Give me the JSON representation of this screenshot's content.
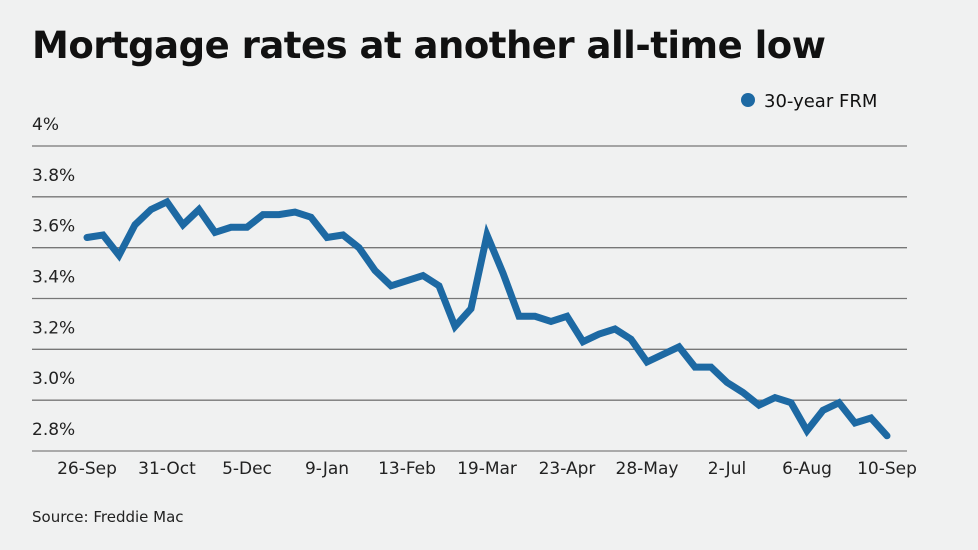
{
  "chart_data": {
    "type": "line",
    "title": "Mortgage rates at another all-time low",
    "source": "Source: Freddie Mac",
    "xlabel": "",
    "ylabel": "",
    "ylim": [
      2.8,
      4.0
    ],
    "yticks": [
      2.8,
      3.0,
      3.2,
      3.4,
      3.6,
      3.8,
      4.0
    ],
    "ytick_labels": [
      "2.8%",
      "3.0%",
      "3.2%",
      "3.4%",
      "3.6%",
      "3.8%",
      "4%"
    ],
    "xtick_labels": [
      "26-Sep",
      "31-Oct",
      "5-Dec",
      "9-Jan",
      "13-Feb",
      "19-Mar",
      "23-Apr",
      "28-May",
      "2-Jul",
      "6-Aug",
      "10-Sep"
    ],
    "grid": true,
    "legend_position": "top-right",
    "series": [
      {
        "name": "30-year FRM",
        "color": "#1d69a3",
        "values": [
          3.64,
          3.65,
          3.57,
          3.69,
          3.75,
          3.78,
          3.69,
          3.75,
          3.66,
          3.68,
          3.68,
          3.73,
          3.73,
          3.74,
          3.72,
          3.64,
          3.65,
          3.6,
          3.51,
          3.45,
          3.47,
          3.49,
          3.45,
          3.29,
          3.36,
          3.65,
          3.5,
          3.33,
          3.33,
          3.31,
          3.33,
          3.23,
          3.26,
          3.28,
          3.24,
          3.15,
          3.18,
          3.21,
          3.13,
          3.13,
          3.07,
          3.03,
          2.98,
          3.01,
          2.99,
          2.88,
          2.96,
          2.99,
          2.91,
          2.93,
          2.86
        ]
      }
    ]
  }
}
